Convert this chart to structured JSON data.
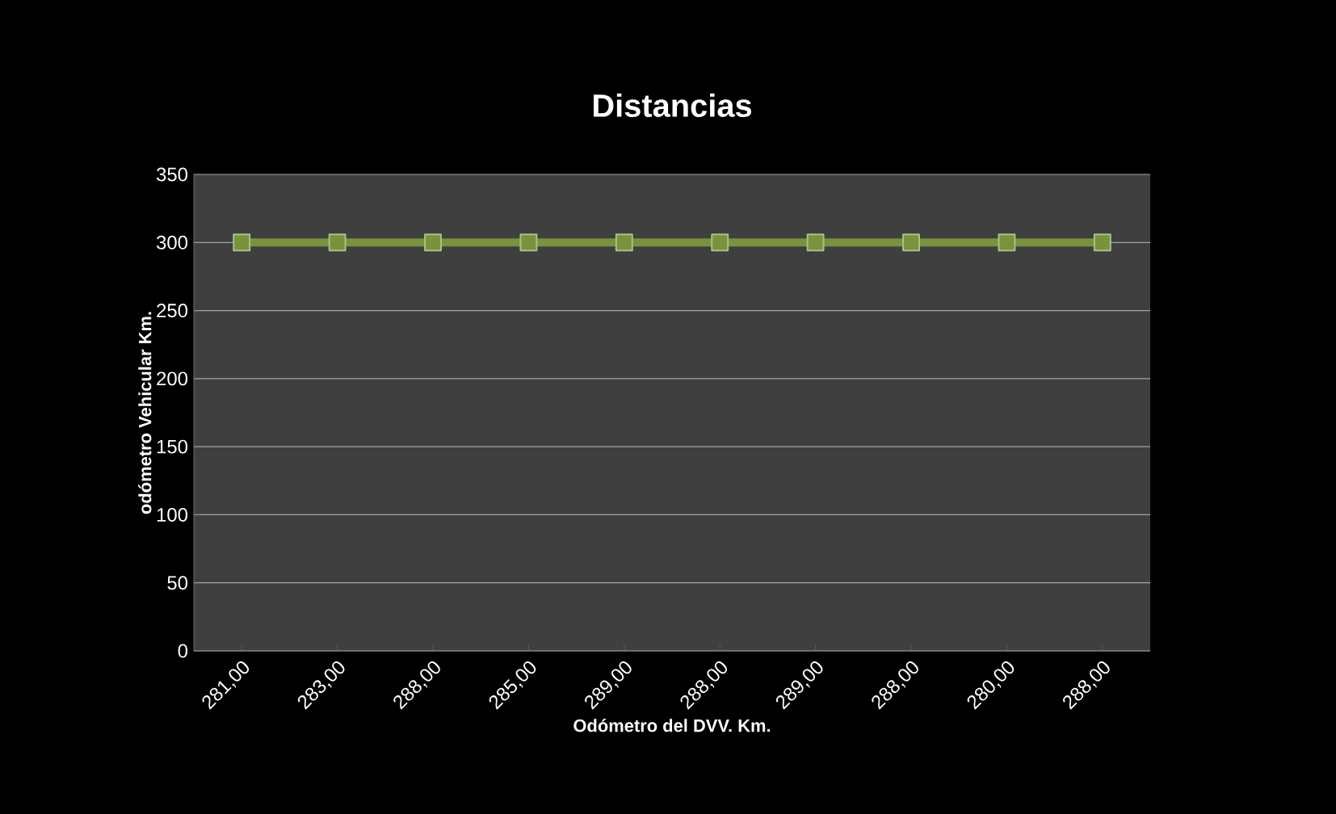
{
  "chart_data": {
    "type": "line",
    "title": "Distancias",
    "xlabel": "Odómetro del DVV. Km.",
    "ylabel": "odómetro Vehicular Km.",
    "categories": [
      "281,00",
      "283,00",
      "288,00",
      "285,00",
      "289,00",
      "288,00",
      "289,00",
      "288,00",
      "280,00",
      "288,00"
    ],
    "series": [
      {
        "color": "#77933c",
        "values": [
          300,
          300,
          300,
          300,
          300,
          300,
          300,
          300,
          300,
          300
        ]
      }
    ],
    "ylim": [
      0,
      350
    ],
    "yticks": [
      0,
      50,
      100,
      150,
      200,
      250,
      300,
      350
    ],
    "grid": "y",
    "marker": "square",
    "line_style": "solid"
  }
}
